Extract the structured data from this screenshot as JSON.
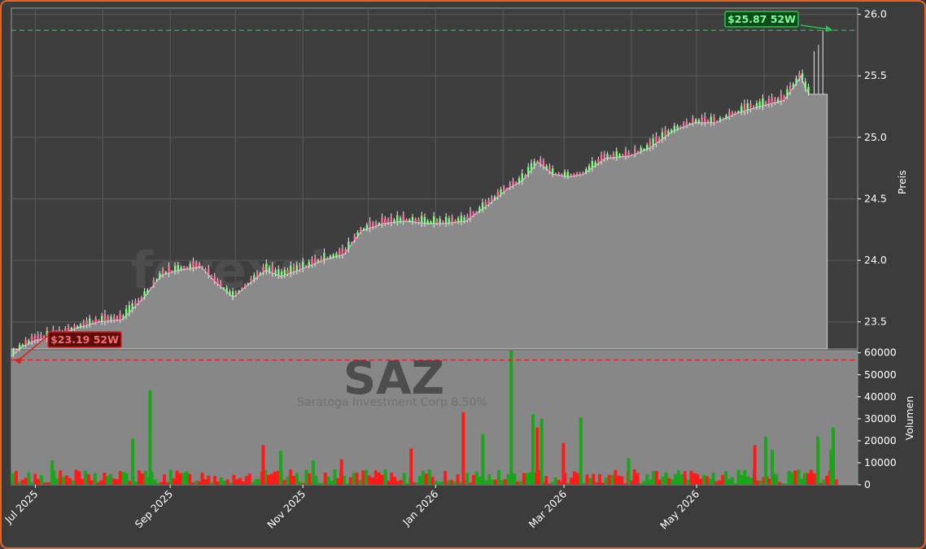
{
  "chart_data": {
    "type": "candlestick",
    "watermark": "forexsignale.trade",
    "symbol": "SAZ",
    "subtitle": "Saratoga Investment Corp 8.50%",
    "price_axis": {
      "label": "Preis",
      "ylim": [
        23.28,
        26.05
      ],
      "ticks": [
        "23.5",
        "24.0",
        "24.5",
        "25.0",
        "25.5",
        "26.0"
      ]
    },
    "volume_axis": {
      "label": "Volumen",
      "ylim": [
        0,
        61000
      ],
      "ticks": [
        "0",
        "10000",
        "20000",
        "30000",
        "40000",
        "50000",
        "60000"
      ]
    },
    "x_ticks": [
      "Jul 2025",
      "Sep 2025",
      "Nov 2025",
      "Jan 2026",
      "Mar 2026",
      "May 2026"
    ],
    "high_52w": {
      "value": 25.87,
      "label": "$25.87 52W",
      "color": "#2bbf4f"
    },
    "low_52w": {
      "value": 23.19,
      "label": "$23.19 52W",
      "color": "#e02020"
    },
    "last_price": 25.35,
    "price_path": [
      [
        "2025-06-20",
        23.22
      ],
      [
        "2025-06-25",
        23.3
      ],
      [
        "2025-07-01",
        23.35
      ],
      [
        "2025-07-10",
        23.38
      ],
      [
        "2025-07-20",
        23.45
      ],
      [
        "2025-07-30",
        23.5
      ],
      [
        "2025-08-10",
        23.52
      ],
      [
        "2025-08-20",
        23.7
      ],
      [
        "2025-08-28",
        23.88
      ],
      [
        "2025-09-05",
        23.92
      ],
      [
        "2025-09-15",
        23.95
      ],
      [
        "2025-09-22",
        23.82
      ],
      [
        "2025-09-30",
        23.7
      ],
      [
        "2025-10-08",
        23.82
      ],
      [
        "2025-10-15",
        23.92
      ],
      [
        "2025-10-22",
        23.87
      ],
      [
        "2025-10-30",
        23.92
      ],
      [
        "2025-11-10",
        24.0
      ],
      [
        "2025-11-20",
        24.05
      ],
      [
        "2025-11-28",
        24.24
      ],
      [
        "2025-12-08",
        24.3
      ],
      [
        "2025-12-18",
        24.32
      ],
      [
        "2025-12-28",
        24.3
      ],
      [
        "2026-01-05",
        24.3
      ],
      [
        "2026-01-15",
        24.32
      ],
      [
        "2026-01-25",
        24.45
      ],
      [
        "2026-02-03",
        24.58
      ],
      [
        "2026-02-10",
        24.65
      ],
      [
        "2026-02-17",
        24.8
      ],
      [
        "2026-02-24",
        24.7
      ],
      [
        "2026-03-03",
        24.68
      ],
      [
        "2026-03-10",
        24.7
      ],
      [
        "2026-03-20",
        24.83
      ],
      [
        "2026-04-01",
        24.85
      ],
      [
        "2026-04-10",
        24.92
      ],
      [
        "2026-04-20",
        25.05
      ],
      [
        "2026-04-30",
        25.12
      ],
      [
        "2026-05-10",
        25.12
      ],
      [
        "2026-05-20",
        25.2
      ],
      [
        "2026-05-30",
        25.25
      ],
      [
        "2026-06-10",
        25.3
      ],
      [
        "2026-06-15",
        25.42
      ],
      [
        "2026-06-18",
        25.5
      ],
      [
        "2026-06-20",
        25.4
      ],
      [
        "2026-06-22",
        25.35
      ],
      [
        "2026-06-30",
        25.35
      ]
    ],
    "volume_spikes": [
      [
        "2025-07-08",
        11000,
        "green"
      ],
      [
        "2025-08-14",
        21000,
        "green"
      ],
      [
        "2025-08-22",
        43000,
        "green"
      ],
      [
        "2025-10-13",
        18000,
        "red"
      ],
      [
        "2025-10-21",
        15500,
        "green"
      ],
      [
        "2025-11-05",
        11000,
        "green"
      ],
      [
        "2025-11-18",
        11500,
        "red"
      ],
      [
        "2025-12-20",
        16500,
        "red"
      ],
      [
        "2026-01-13",
        33000,
        "red"
      ],
      [
        "2026-01-22",
        23000,
        "green"
      ],
      [
        "2026-02-04",
        61000,
        "green"
      ],
      [
        "2026-02-14",
        32000,
        "green"
      ],
      [
        "2026-02-16",
        26000,
        "red"
      ],
      [
        "2026-02-18",
        30000,
        "green"
      ],
      [
        "2026-02-28",
        19000,
        "red"
      ],
      [
        "2026-03-08",
        30500,
        "green"
      ],
      [
        "2026-03-30",
        12000,
        "green"
      ],
      [
        "2026-05-27",
        18000,
        "red"
      ],
      [
        "2026-06-01",
        22000,
        "green"
      ],
      [
        "2026-06-04",
        16000,
        "green"
      ],
      [
        "2026-06-25",
        22000,
        "green"
      ],
      [
        "2026-07-02",
        26000,
        "green"
      ],
      [
        "2026-07-01",
        16000,
        "green"
      ]
    ]
  }
}
